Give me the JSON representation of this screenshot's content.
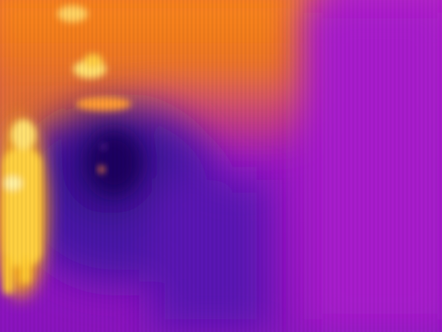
{
  "image": {
    "kind": "thermal-camera-frame",
    "palette": "iron",
    "palette_colors": {
      "cold": "#2a0a78",
      "cool": "#5a14b0",
      "mid": "#9a1ccc",
      "warm": "#d04a6a",
      "hot": "#ff8a10",
      "hottest": "#ffe060"
    },
    "subjects": [
      {
        "name": "person",
        "temperature_level": "hottest"
      },
      {
        "name": "ceiling-lights",
        "temperature_level": "hot"
      },
      {
        "name": "cold-doorway",
        "temperature_level": "cold"
      },
      {
        "name": "wall",
        "temperature_level": "mid"
      }
    ]
  }
}
